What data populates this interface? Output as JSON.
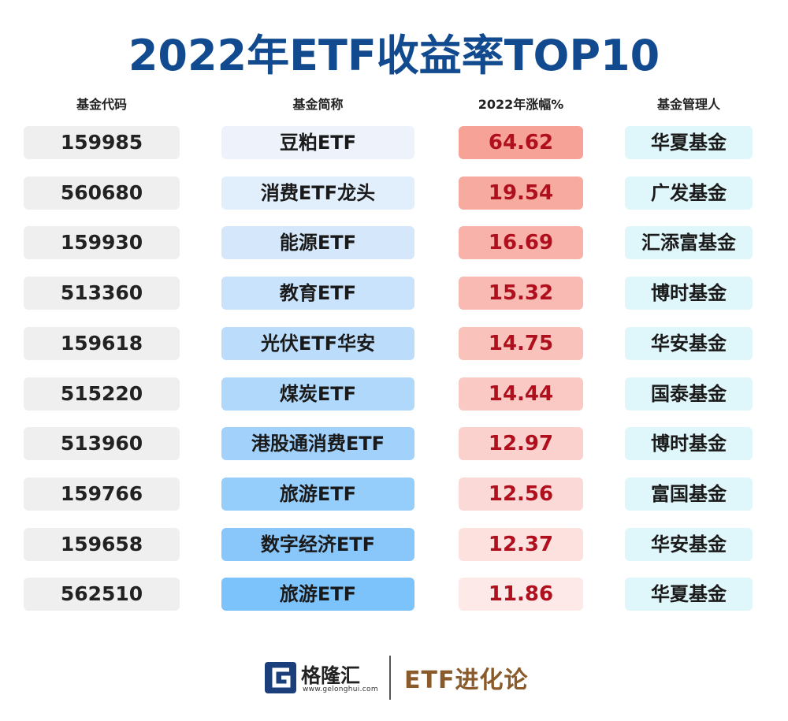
{
  "chart_data": {
    "type": "table",
    "title": "2022年ETF收益率TOP10",
    "columns": [
      "基金代码",
      "基金简称",
      "2022年涨幅%",
      "基金管理人"
    ],
    "rows": [
      {
        "code": "159985",
        "name": "豆粕ETF",
        "return": "64.62",
        "manager": "华夏基金"
      },
      {
        "code": "560680",
        "name": "消费ETF龙头",
        "return": "19.54",
        "manager": "广发基金"
      },
      {
        "code": "159930",
        "name": "能源ETF",
        "return": "16.69",
        "manager": "汇添富基金"
      },
      {
        "code": "513360",
        "name": "教育ETF",
        "return": "15.32",
        "manager": "博时基金"
      },
      {
        "code": "159618",
        "name": "光伏ETF华安",
        "return": "14.75",
        "manager": "华安基金"
      },
      {
        "code": "515220",
        "name": "煤炭ETF",
        "return": "14.44",
        "manager": "国泰基金"
      },
      {
        "code": "513960",
        "name": "港股通消费ETF",
        "return": "12.97",
        "manager": "博时基金"
      },
      {
        "code": "159766",
        "name": "旅游ETF",
        "return": "12.56",
        "manager": "富国基金"
      },
      {
        "code": "159658",
        "name": "数字经济ETF",
        "return": "12.37",
        "manager": "华安基金"
      },
      {
        "code": "562510",
        "name": "旅游ETF",
        "return": "11.86",
        "manager": "华夏基金"
      }
    ]
  },
  "colors": {
    "title": "#124a8f",
    "name_gradient_start": "#eef3fb",
    "name_gradient_end": "#7cc2fb",
    "return_gradient_start": "#f6a297",
    "return_gradient_end": "#fde9e8",
    "return_text": "#b0101e",
    "manager_bg": "#dff6fa",
    "code_bg": "#efefef"
  },
  "footer": {
    "logo_name": "格隆汇",
    "logo_url": "www.gelonghui.com",
    "brand": "ETF进化论",
    "logo_icon": "gelonghui-g-icon"
  }
}
